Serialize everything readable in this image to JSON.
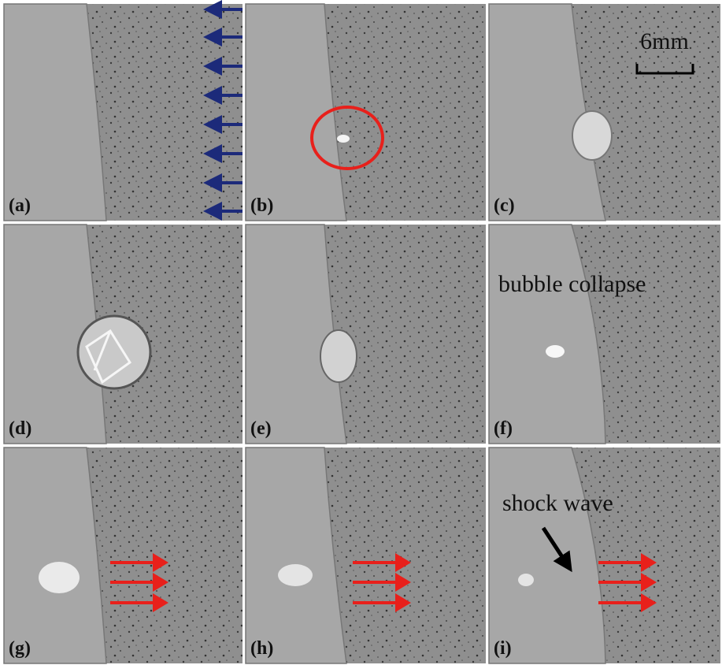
{
  "panels": [
    {
      "label": "(a)"
    },
    {
      "label": "(b)"
    },
    {
      "label": "(c)"
    },
    {
      "label": "(d)"
    },
    {
      "label": "(e)"
    },
    {
      "label": "(f)"
    },
    {
      "label": "(g)"
    },
    {
      "label": "(h)"
    },
    {
      "label": "(i)"
    }
  ],
  "scale_bar": "6mm",
  "annotations": {
    "bubble_collapse": "bubble collapse",
    "shock_wave": "shock wave"
  }
}
